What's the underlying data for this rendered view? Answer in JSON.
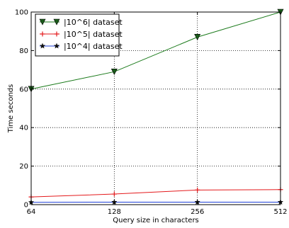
{
  "chart_data": {
    "type": "line",
    "xlabel": "Query size in characters",
    "ylabel": "Time seconds",
    "x": [
      "64",
      "128",
      "256",
      "512"
    ],
    "ylim": [
      0,
      100
    ],
    "yticks": [
      "0",
      "20",
      "40",
      "60",
      "80",
      "100"
    ],
    "grid": true,
    "legend_position": "top-left",
    "series": [
      {
        "name": "|10^6| dataset",
        "color": "#1a7a1a",
        "marker": "triangle-down",
        "values": [
          60,
          69,
          87,
          100
        ]
      },
      {
        "name": "|10^5| dataset",
        "color": "#e41a1c",
        "marker": "plus",
        "values": [
          4,
          5.5,
          7.6,
          7.8
        ]
      },
      {
        "name": "|10^4| dataset",
        "color": "#1f3fd6",
        "marker": "star",
        "values": [
          1.2,
          1.3,
          1.3,
          1.3
        ]
      }
    ]
  }
}
